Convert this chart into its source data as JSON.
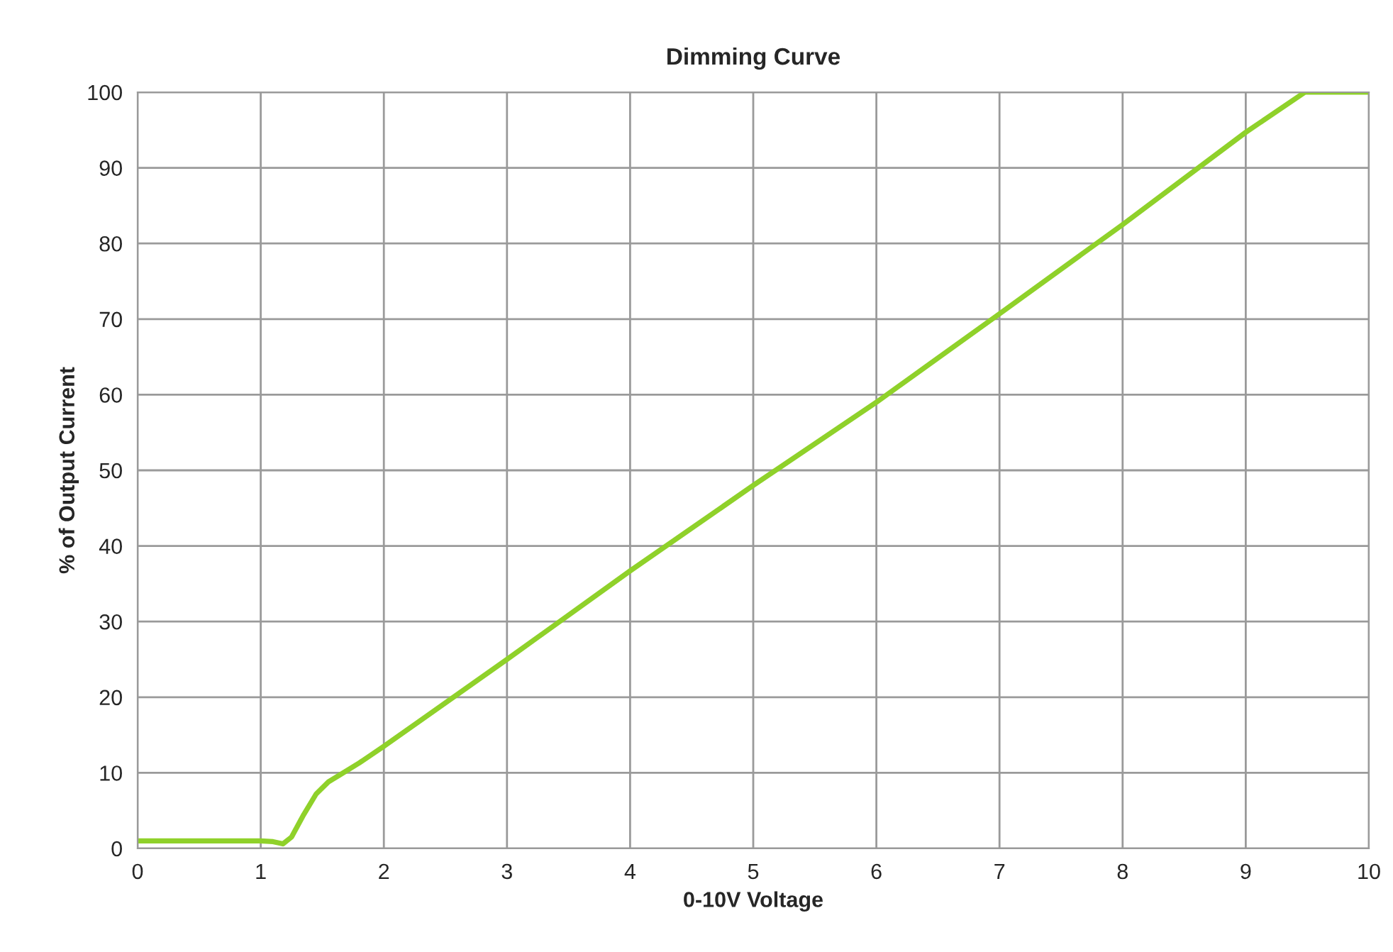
{
  "chart_data": {
    "type": "line",
    "title": "Dimming Curve",
    "xlabel": "0-10V Voltage",
    "ylabel": "% of Output Current",
    "series": [
      {
        "color": "#8fd12a",
        "x": [
          0,
          0.5,
          1.0,
          1.1,
          1.18,
          1.25,
          1.35,
          1.45,
          1.55,
          1.64,
          1.8,
          2,
          3,
          4,
          5,
          6,
          7,
          8,
          9,
          9.48,
          9.7,
          10
        ],
        "values": [
          1,
          1,
          1,
          0.9,
          0.6,
          1.5,
          4.5,
          7.2,
          8.8,
          9.7,
          11.3,
          13.5,
          25,
          36.7,
          48,
          59,
          70.7,
          82.5,
          94.7,
          100,
          100,
          100
        ]
      }
    ],
    "xlim": [
      0,
      10
    ],
    "xticks": [
      0,
      1,
      2,
      3,
      4,
      5,
      6,
      7,
      8,
      9,
      10
    ],
    "ylim": [
      0,
      100
    ],
    "yticks": [
      0,
      10,
      20,
      30,
      40,
      50,
      60,
      70,
      80,
      90,
      100
    ],
    "grid": true,
    "marker": "none",
    "line_style": "solid"
  }
}
